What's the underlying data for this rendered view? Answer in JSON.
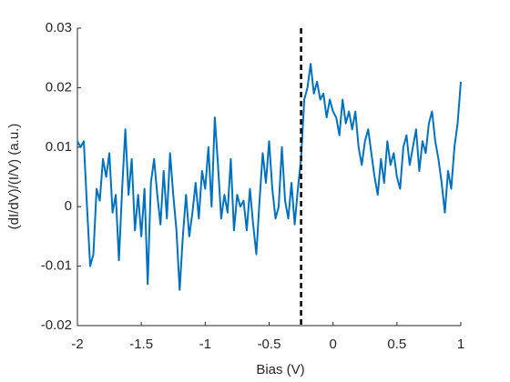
{
  "chart_data": {
    "type": "line",
    "xlabel": "Bias (V)",
    "ylabel": "(dI/dV)/(I/V) (a.u.)",
    "x": [
      -2,
      -1.975,
      -1.95,
      -1.925,
      -1.9,
      -1.875,
      -1.85,
      -1.825,
      -1.8,
      -1.775,
      -1.75,
      -1.725,
      -1.7,
      -1.675,
      -1.65,
      -1.625,
      -1.6,
      -1.575,
      -1.55,
      -1.525,
      -1.5,
      -1.475,
      -1.45,
      -1.425,
      -1.4,
      -1.375,
      -1.35,
      -1.325,
      -1.3,
      -1.275,
      -1.25,
      -1.225,
      -1.2,
      -1.175,
      -1.15,
      -1.125,
      -1.1,
      -1.075,
      -1.05,
      -1.025,
      -1,
      -0.975,
      -0.95,
      -0.925,
      -0.9,
      -0.875,
      -0.85,
      -0.825,
      -0.8,
      -0.775,
      -0.75,
      -0.725,
      -0.7,
      -0.675,
      -0.65,
      -0.625,
      -0.6,
      -0.575,
      -0.55,
      -0.525,
      -0.5,
      -0.475,
      -0.45,
      -0.425,
      -0.4,
      -0.375,
      -0.35,
      -0.325,
      -0.3,
      -0.275,
      -0.25,
      -0.225,
      -0.2,
      -0.175,
      -0.15,
      -0.125,
      -0.1,
      -0.075,
      -0.05,
      -0.025,
      0,
      0.025,
      0.05,
      0.075,
      0.1,
      0.125,
      0.15,
      0.175,
      0.2,
      0.225,
      0.25,
      0.275,
      0.3,
      0.325,
      0.35,
      0.375,
      0.4,
      0.425,
      0.45,
      0.475,
      0.5,
      0.525,
      0.55,
      0.575,
      0.6,
      0.625,
      0.65,
      0.675,
      0.7,
      0.725,
      0.75,
      0.775,
      0.8,
      0.825,
      0.85,
      0.875,
      0.9,
      0.925,
      0.95,
      0.975,
      1
    ],
    "series": [
      {
        "color": "#0072bd",
        "values": [
          0.011,
          0.01,
          0.011,
          0,
          -0.01,
          -0.008,
          0.003,
          0.001,
          0.008,
          0.005,
          0.009,
          -0.001,
          0.002,
          -0.009,
          0.003,
          0.013,
          0.002,
          0.008,
          -0.004,
          0.002,
          -0.005,
          0.003,
          -0.013,
          0.004,
          0.008,
          0.002,
          -0.003,
          0.006,
          -0.002,
          0.009,
          0.002,
          -0.004,
          -0.014,
          -0.005,
          0.002,
          -0.005,
          -0.001,
          0.004,
          -0.002,
          0.006,
          0.003,
          0.01,
          0,
          0.015,
          0.007,
          -0.002,
          0.002,
          -0.001,
          0.008,
          -0.004,
          0.002,
          0,
          0.001,
          -0.004,
          0.003,
          -0.003,
          -0.008,
          0.001,
          0.009,
          0.004,
          0.011,
          0.003,
          -0.002,
          0,
          0.01,
          0.001,
          -0.002,
          0.004,
          -0.003,
          0.003,
          0.008,
          0.018,
          0.02,
          0.024,
          0.019,
          0.021,
          0.018,
          0.019,
          0.015,
          0.018,
          0.016,
          0.015,
          0.012,
          0.018,
          0.014,
          0.016,
          0.013,
          0.016,
          0.01,
          0.007,
          0.011,
          0.013,
          0.009,
          0.005,
          0.002,
          0.008,
          0.004,
          0.011,
          0.007,
          0.009,
          0.005,
          0.003,
          0.01,
          0.012,
          0.007,
          0.01,
          0.013,
          0.006,
          0.011,
          0.009,
          0.014,
          0.016,
          0.011,
          0.008,
          0.004,
          -0.001,
          0.006,
          0.003,
          0.01,
          0.014,
          0.021
        ]
      }
    ],
    "vline": -0.25,
    "xlim": [
      -2,
      1
    ],
    "xticks": [
      -2,
      -1.5,
      -1,
      -0.5,
      0,
      0.5,
      1
    ],
    "ylim": [
      -0.02,
      0.03
    ],
    "yticks": [
      -0.02,
      -0.01,
      0,
      0.01,
      0.02,
      0.03
    ]
  }
}
